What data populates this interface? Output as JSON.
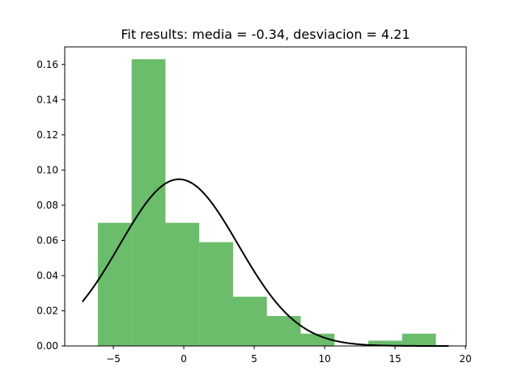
{
  "chart_data": {
    "type": "bar",
    "title": "Fit results: media = -0.34,  desviacion = 4.21",
    "xlabel": "",
    "ylabel": "",
    "xlim": [
      -8.45,
      20.05
    ],
    "ylim": [
      0,
      0.17
    ],
    "grid": false,
    "legend": "none",
    "histogram": {
      "bin_edges": [
        -6.1,
        -3.7,
        -1.3,
        1.1,
        3.5,
        5.9,
        8.3,
        10.7,
        13.1,
        15.5,
        17.9
      ],
      "densities": [
        0.07,
        0.163,
        0.07,
        0.059,
        0.028,
        0.017,
        0.007,
        0.0,
        0.003,
        0.007
      ],
      "color": "#2ca02c",
      "alpha": 0.7
    },
    "series": [
      {
        "type": "line",
        "distribution": "normal",
        "mean": -0.34,
        "std": 4.21,
        "x_range": [
          -7.2,
          18.8
        ],
        "color": "#000000",
        "linewidth": 2
      }
    ],
    "x_ticks": [
      {
        "value": -5,
        "label": "−5"
      },
      {
        "value": 0,
        "label": "0"
      },
      {
        "value": 5,
        "label": "5"
      },
      {
        "value": 10,
        "label": "10"
      },
      {
        "value": 15,
        "label": "15"
      },
      {
        "value": 20,
        "label": "20"
      }
    ],
    "y_ticks": [
      {
        "value": 0.0,
        "label": "0.00"
      },
      {
        "value": 0.02,
        "label": "0.02"
      },
      {
        "value": 0.04,
        "label": "0.04"
      },
      {
        "value": 0.06,
        "label": "0.06"
      },
      {
        "value": 0.08,
        "label": "0.08"
      },
      {
        "value": 0.1,
        "label": "0.10"
      },
      {
        "value": 0.12,
        "label": "0.12"
      },
      {
        "value": 0.14,
        "label": "0.14"
      },
      {
        "value": 0.16,
        "label": "0.16"
      }
    ]
  }
}
